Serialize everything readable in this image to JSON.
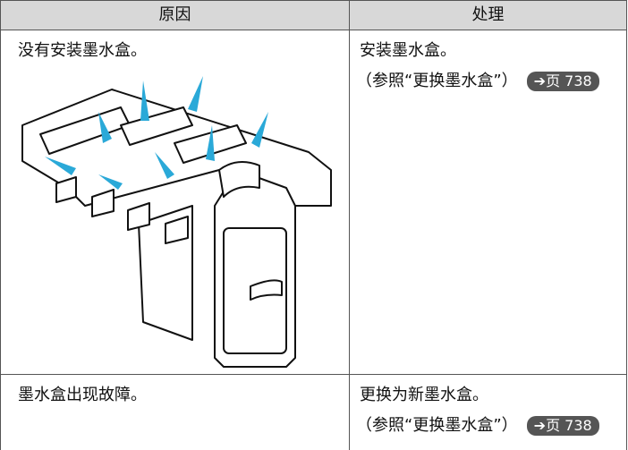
{
  "table": {
    "header": [
      "原因",
      "处理"
    ],
    "rows": [
      {
        "cause": "没有安装墨水盒。",
        "action": "安装墨水盒。",
        "ref": "（参照“更换墨水盒”）",
        "link": "➔页 738"
      },
      {
        "cause": "墨水盒出现故障。",
        "action": "更换为新墨水盒。",
        "ref": "（参照“更换墨水盒”）",
        "link": "➔页 738"
      }
    ]
  }
}
